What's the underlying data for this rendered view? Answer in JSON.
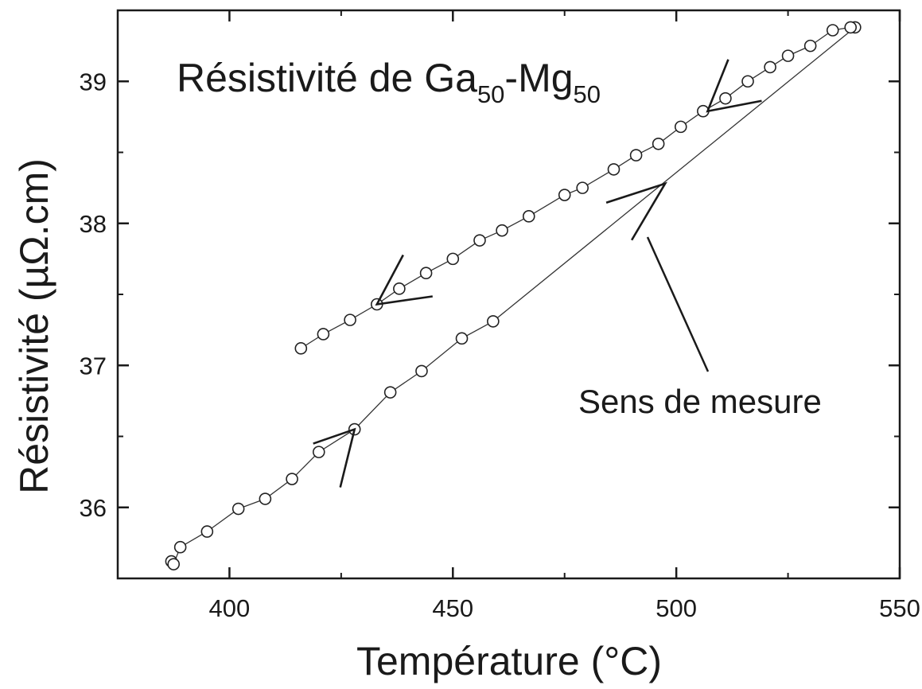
{
  "chart_data": {
    "type": "scatter",
    "title": "Résistivité de Ga",
    "title_parts": {
      "pre": "Résistivité de Ga",
      "sub1": "50",
      "mid": "-Mg",
      "sub2": "50"
    },
    "xlabel": "Température (°C)",
    "ylabel": "Résistivité (µΩ.cm)",
    "xlim": [
      375,
      550
    ],
    "ylim": [
      35.5,
      39.5
    ],
    "xticks": [
      400,
      450,
      500,
      550
    ],
    "yticks": [
      36,
      37,
      38,
      39
    ],
    "grid": false,
    "annotation": "Sens de mesure",
    "marker_color": "#222222",
    "line_color": "#333333",
    "series": [
      {
        "direction": "heating",
        "x": [
          387,
          387.5,
          389,
          395,
          402,
          408,
          414,
          420,
          428,
          436,
          443,
          452,
          459
        ],
        "y": [
          35.62,
          35.6,
          35.72,
          35.83,
          35.99,
          36.06,
          36.2,
          36.39,
          36.55,
          36.81,
          36.96,
          37.19,
          37.31
        ]
      },
      {
        "direction": "heating-line",
        "x": [
          459,
          540
        ],
        "y": [
          37.31,
          39.38
        ]
      },
      {
        "direction": "cooling",
        "x": [
          540,
          539,
          535,
          530,
          525,
          521,
          516,
          511,
          506,
          501,
          496,
          491,
          486,
          479,
          475,
          467,
          461,
          456,
          450,
          444,
          438,
          433,
          427,
          421,
          416
        ],
        "y": [
          39.38,
          39.38,
          39.36,
          39.25,
          39.18,
          39.1,
          39.0,
          38.88,
          38.79,
          38.68,
          38.56,
          38.48,
          38.38,
          38.25,
          38.2,
          38.05,
          37.95,
          37.88,
          37.75,
          37.65,
          37.54,
          37.43,
          37.32,
          37.22,
          37.12
        ]
      }
    ]
  }
}
